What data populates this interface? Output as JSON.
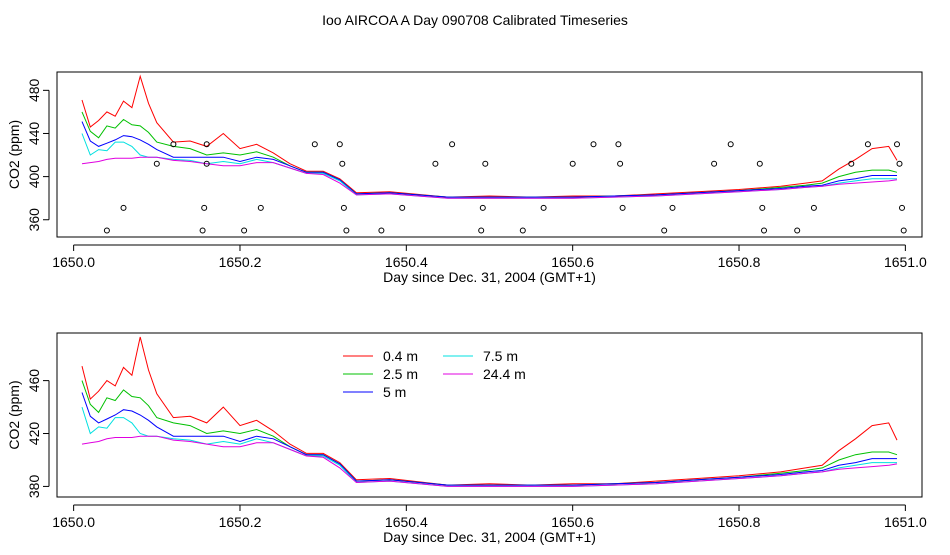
{
  "figure": {
    "title": "Ioo AIRCOA A  Day 090708  Calibrated Timeseries"
  },
  "chart_data": [
    {
      "type": "line",
      "xlabel": "Day since Dec. 31, 2004 (GMT+1)",
      "ylabel": "CO2 (ppm)",
      "xlim": [
        1649.98,
        1651.02
      ],
      "ylim": [
        344,
        497
      ],
      "xticks": [
        1650.0,
        1650.2,
        1650.4,
        1650.6,
        1650.8,
        1651.0
      ],
      "xtick_labels": [
        "1650.0",
        "1650.2",
        "1650.4",
        "1650.6",
        "1650.8",
        "1651.0"
      ],
      "yticks": [
        360,
        400,
        440,
        480
      ],
      "ytick_labels": [
        "360",
        "400",
        "440",
        "480"
      ],
      "legend": "none",
      "series": [
        {
          "color": "#ff0000",
          "x": [
            1650.01,
            1650.02,
            1650.03,
            1650.04,
            1650.05,
            1650.06,
            1650.07,
            1650.08,
            1650.09,
            1650.1,
            1650.12,
            1650.14,
            1650.16,
            1650.18,
            1650.2,
            1650.22,
            1650.24,
            1650.26,
            1650.28,
            1650.3,
            1650.32,
            1650.34,
            1650.38,
            1650.45,
            1650.5,
            1650.55,
            1650.6,
            1650.65,
            1650.7,
            1650.75,
            1650.8,
            1650.85,
            1650.88,
            1650.9,
            1650.92,
            1650.94,
            1650.96,
            1650.98,
            1650.99
          ],
          "y": [
            471,
            446,
            452,
            460,
            456,
            470,
            464,
            493,
            468,
            450,
            432,
            433,
            428,
            440,
            426,
            430,
            422,
            412,
            405,
            405,
            398,
            385,
            386,
            381,
            382,
            381,
            382,
            382,
            384,
            386,
            388,
            391,
            394,
            396,
            407,
            416,
            426,
            428,
            415
          ]
        },
        {
          "color": "#00c000",
          "x": [
            1650.01,
            1650.02,
            1650.03,
            1650.04,
            1650.05,
            1650.06,
            1650.07,
            1650.08,
            1650.09,
            1650.1,
            1650.12,
            1650.14,
            1650.16,
            1650.18,
            1650.2,
            1650.22,
            1650.24,
            1650.26,
            1650.28,
            1650.3,
            1650.32,
            1650.34,
            1650.38,
            1650.45,
            1650.5,
            1650.55,
            1650.6,
            1650.65,
            1650.7,
            1650.75,
            1650.8,
            1650.85,
            1650.88,
            1650.9,
            1650.92,
            1650.94,
            1650.96,
            1650.98,
            1650.99
          ],
          "y": [
            460,
            442,
            436,
            447,
            445,
            453,
            448,
            447,
            441,
            432,
            428,
            426,
            420,
            422,
            420,
            423,
            418,
            410,
            404,
            404,
            397,
            384,
            385,
            381,
            381,
            381,
            381,
            382,
            383,
            385,
            387,
            390,
            392,
            394,
            400,
            404,
            406,
            406,
            404
          ]
        },
        {
          "color": "#0000ff",
          "x": [
            1650.01,
            1650.02,
            1650.03,
            1650.04,
            1650.05,
            1650.06,
            1650.07,
            1650.08,
            1650.09,
            1650.1,
            1650.12,
            1650.14,
            1650.16,
            1650.18,
            1650.2,
            1650.22,
            1650.24,
            1650.26,
            1650.28,
            1650.3,
            1650.32,
            1650.34,
            1650.38,
            1650.45,
            1650.5,
            1650.55,
            1650.6,
            1650.65,
            1650.7,
            1650.75,
            1650.8,
            1650.85,
            1650.88,
            1650.9,
            1650.92,
            1650.94,
            1650.96,
            1650.98,
            1650.99
          ],
          "y": [
            451,
            433,
            428,
            431,
            434,
            438,
            437,
            434,
            430,
            425,
            418,
            418,
            418,
            418,
            414,
            418,
            416,
            410,
            404,
            404,
            397,
            384,
            385,
            381,
            381,
            381,
            381,
            382,
            383,
            385,
            387,
            389,
            391,
            392,
            396,
            398,
            401,
            401,
            401
          ]
        },
        {
          "color": "#00e0e0",
          "x": [
            1650.01,
            1650.02,
            1650.03,
            1650.04,
            1650.05,
            1650.06,
            1650.07,
            1650.08,
            1650.09,
            1650.1,
            1650.12,
            1650.14,
            1650.16,
            1650.18,
            1650.2,
            1650.22,
            1650.24,
            1650.26,
            1650.28,
            1650.3,
            1650.32,
            1650.34,
            1650.38,
            1650.45,
            1650.5,
            1650.55,
            1650.6,
            1650.65,
            1650.7,
            1650.75,
            1650.8,
            1650.85,
            1650.88,
            1650.9,
            1650.92,
            1650.94,
            1650.96,
            1650.98,
            1650.99
          ],
          "y": [
            440,
            420,
            425,
            424,
            432,
            432,
            428,
            420,
            418,
            418,
            416,
            415,
            412,
            414,
            412,
            416,
            413,
            408,
            403,
            403,
            396,
            383,
            384,
            380,
            380,
            380,
            380,
            381,
            382,
            384,
            386,
            388,
            390,
            391,
            394,
            396,
            398,
            398,
            398
          ]
        },
        {
          "color": "#e000e0",
          "x": [
            1650.01,
            1650.02,
            1650.03,
            1650.04,
            1650.05,
            1650.06,
            1650.07,
            1650.08,
            1650.09,
            1650.1,
            1650.12,
            1650.14,
            1650.16,
            1650.18,
            1650.2,
            1650.22,
            1650.24,
            1650.26,
            1650.28,
            1650.3,
            1650.32,
            1650.34,
            1650.38,
            1650.45,
            1650.5,
            1650.55,
            1650.6,
            1650.65,
            1650.7,
            1650.75,
            1650.8,
            1650.85,
            1650.88,
            1650.9,
            1650.92,
            1650.94,
            1650.96,
            1650.98,
            1650.99
          ],
          "y": [
            412,
            413,
            414,
            416,
            417,
            417,
            417,
            418,
            418,
            418,
            415,
            414,
            412,
            410,
            410,
            413,
            413,
            408,
            403,
            402,
            394,
            383,
            384,
            380,
            380,
            380,
            380,
            381,
            382,
            384,
            386,
            388,
            390,
            391,
            393,
            394,
            395,
            396,
            397
          ]
        }
      ],
      "points": {
        "x": [
          1650.04,
          1650.06,
          1650.1,
          1650.12,
          1650.155,
          1650.157,
          1650.16,
          1650.16,
          1650.205,
          1650.225,
          1650.29,
          1650.32,
          1650.323,
          1650.325,
          1650.328,
          1650.37,
          1650.395,
          1650.435,
          1650.455,
          1650.49,
          1650.492,
          1650.495,
          1650.54,
          1650.565,
          1650.6,
          1650.625,
          1650.655,
          1650.657,
          1650.66,
          1650.71,
          1650.72,
          1650.77,
          1650.79,
          1650.825,
          1650.828,
          1650.83,
          1650.87,
          1650.89,
          1650.935,
          1650.955,
          1650.99,
          1650.993,
          1650.996,
          1650.998
        ],
        "y": [
          350,
          371,
          412,
          430,
          350,
          371,
          412,
          430,
          350,
          371,
          430,
          430,
          412,
          371,
          350,
          350,
          371,
          412,
          430,
          350,
          371,
          412,
          350,
          371,
          412,
          430,
          430,
          412,
          371,
          350,
          371,
          412,
          430,
          412,
          371,
          350,
          350,
          371,
          412,
          430,
          430,
          412,
          371,
          350
        ]
      }
    },
    {
      "type": "line",
      "xlabel": "Day since Dec. 31, 2004 (GMT+1)",
      "ylabel": "CO2 (ppm)",
      "xlim": [
        1649.98,
        1651.02
      ],
      "ylim": [
        372,
        496
      ],
      "xticks": [
        1650.0,
        1650.2,
        1650.4,
        1650.6,
        1650.8,
        1651.0
      ],
      "xtick_labels": [
        "1650.0",
        "1650.2",
        "1650.4",
        "1650.6",
        "1650.8",
        "1651.0"
      ],
      "yticks": [
        380,
        420,
        460
      ],
      "ytick_labels": [
        "380",
        "420",
        "460"
      ],
      "legend": "top-center",
      "series": [
        {
          "name": "0.4 m",
          "color": "#ff0000",
          "x": [
            1650.01,
            1650.02,
            1650.03,
            1650.04,
            1650.05,
            1650.06,
            1650.07,
            1650.08,
            1650.09,
            1650.1,
            1650.12,
            1650.14,
            1650.16,
            1650.18,
            1650.2,
            1650.22,
            1650.24,
            1650.26,
            1650.28,
            1650.3,
            1650.32,
            1650.34,
            1650.38,
            1650.45,
            1650.5,
            1650.55,
            1650.6,
            1650.65,
            1650.7,
            1650.75,
            1650.8,
            1650.85,
            1650.88,
            1650.9,
            1650.92,
            1650.94,
            1650.96,
            1650.98,
            1650.99
          ],
          "y": [
            471,
            446,
            452,
            460,
            456,
            470,
            464,
            493,
            468,
            450,
            432,
            433,
            428,
            440,
            426,
            430,
            422,
            412,
            405,
            405,
            398,
            385,
            386,
            381,
            382,
            381,
            382,
            382,
            384,
            386,
            388,
            391,
            394,
            396,
            407,
            416,
            426,
            428,
            415
          ]
        },
        {
          "name": "2.5 m",
          "color": "#00c000",
          "x": [
            1650.01,
            1650.02,
            1650.03,
            1650.04,
            1650.05,
            1650.06,
            1650.07,
            1650.08,
            1650.09,
            1650.1,
            1650.12,
            1650.14,
            1650.16,
            1650.18,
            1650.2,
            1650.22,
            1650.24,
            1650.26,
            1650.28,
            1650.3,
            1650.32,
            1650.34,
            1650.38,
            1650.45,
            1650.5,
            1650.55,
            1650.6,
            1650.65,
            1650.7,
            1650.75,
            1650.8,
            1650.85,
            1650.88,
            1650.9,
            1650.92,
            1650.94,
            1650.96,
            1650.98,
            1650.99
          ],
          "y": [
            460,
            442,
            436,
            447,
            445,
            453,
            448,
            447,
            441,
            432,
            428,
            426,
            420,
            422,
            420,
            423,
            418,
            410,
            404,
            404,
            397,
            384,
            385,
            381,
            381,
            381,
            381,
            382,
            383,
            385,
            387,
            390,
            392,
            394,
            400,
            404,
            406,
            406,
            404
          ]
        },
        {
          "name": "5 m",
          "color": "#0000ff",
          "x": [
            1650.01,
            1650.02,
            1650.03,
            1650.04,
            1650.05,
            1650.06,
            1650.07,
            1650.08,
            1650.09,
            1650.1,
            1650.12,
            1650.14,
            1650.16,
            1650.18,
            1650.2,
            1650.22,
            1650.24,
            1650.26,
            1650.28,
            1650.3,
            1650.32,
            1650.34,
            1650.38,
            1650.45,
            1650.5,
            1650.55,
            1650.6,
            1650.65,
            1650.7,
            1650.75,
            1650.8,
            1650.85,
            1650.88,
            1650.9,
            1650.92,
            1650.94,
            1650.96,
            1650.98,
            1650.99
          ],
          "y": [
            451,
            433,
            428,
            431,
            434,
            438,
            437,
            434,
            430,
            425,
            418,
            418,
            418,
            418,
            414,
            418,
            416,
            410,
            404,
            404,
            397,
            384,
            385,
            381,
            381,
            381,
            381,
            382,
            383,
            385,
            387,
            389,
            391,
            392,
            396,
            398,
            401,
            401,
            401
          ]
        },
        {
          "name": "7.5 m",
          "color": "#00e0e0",
          "x": [
            1650.01,
            1650.02,
            1650.03,
            1650.04,
            1650.05,
            1650.06,
            1650.07,
            1650.08,
            1650.09,
            1650.1,
            1650.12,
            1650.14,
            1650.16,
            1650.18,
            1650.2,
            1650.22,
            1650.24,
            1650.26,
            1650.28,
            1650.3,
            1650.32,
            1650.34,
            1650.38,
            1650.45,
            1650.5,
            1650.55,
            1650.6,
            1650.65,
            1650.7,
            1650.75,
            1650.8,
            1650.85,
            1650.88,
            1650.9,
            1650.92,
            1650.94,
            1650.96,
            1650.98,
            1650.99
          ],
          "y": [
            440,
            420,
            425,
            424,
            432,
            432,
            428,
            420,
            418,
            418,
            416,
            415,
            412,
            414,
            412,
            416,
            413,
            408,
            403,
            403,
            396,
            383,
            384,
            380,
            380,
            380,
            380,
            381,
            382,
            384,
            386,
            388,
            390,
            391,
            394,
            396,
            398,
            398,
            398
          ]
        },
        {
          "name": "24.4 m",
          "color": "#e000e0",
          "x": [
            1650.01,
            1650.02,
            1650.03,
            1650.04,
            1650.05,
            1650.06,
            1650.07,
            1650.08,
            1650.09,
            1650.1,
            1650.12,
            1650.14,
            1650.16,
            1650.18,
            1650.2,
            1650.22,
            1650.24,
            1650.26,
            1650.28,
            1650.3,
            1650.32,
            1650.34,
            1650.38,
            1650.45,
            1650.5,
            1650.55,
            1650.6,
            1650.65,
            1650.7,
            1650.75,
            1650.8,
            1650.85,
            1650.88,
            1650.9,
            1650.92,
            1650.94,
            1650.96,
            1650.98,
            1650.99
          ],
          "y": [
            412,
            413,
            414,
            416,
            417,
            417,
            417,
            418,
            418,
            418,
            415,
            414,
            412,
            410,
            410,
            413,
            413,
            408,
            403,
            402,
            394,
            383,
            384,
            380,
            380,
            380,
            380,
            381,
            382,
            384,
            386,
            388,
            390,
            391,
            393,
            394,
            395,
            396,
            397
          ]
        }
      ]
    }
  ]
}
